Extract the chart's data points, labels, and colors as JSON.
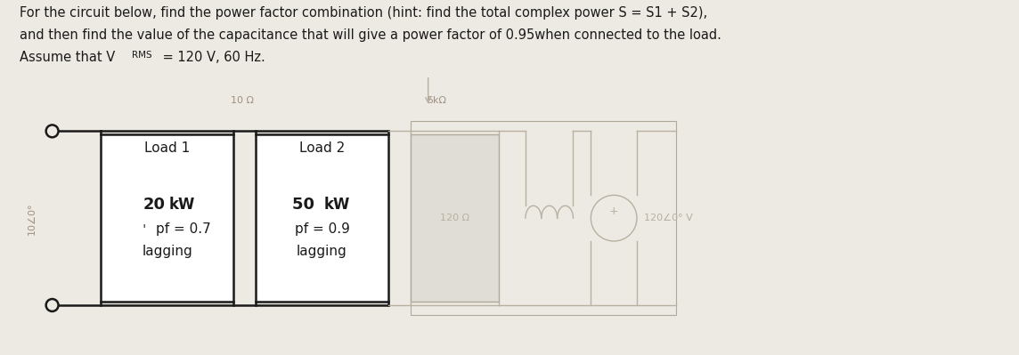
{
  "title_line1": "For the circuit below, find the power factor combination (hint: find the total complex power S = S1 + S2),",
  "title_line2": "and then find the value of the capacitance that will give a power factor of 0.95when connected to the load.",
  "title_line3_a": "Assume that V",
  "title_line3_rms": "RMS",
  "title_line3_b": " = 120 V, 60 Hz.",
  "load1_title": "Load 1",
  "load1_kw": "20",
  "load1_kw_unit": "kW",
  "load1_pf": "pf = 0.7",
  "load1_lag": "lagging",
  "load2_title": "Load 2",
  "load2_kw": "50 ",
  "load2_kw_unit": "kW",
  "load2_pf": "pf = 0.9",
  "load2_lag": "lagging",
  "bg_color": "#edeae4",
  "box_facecolor": "#ffffff",
  "box_edgecolor": "#1a1a1a",
  "wire_color": "#1a1a1a",
  "text_color": "#1a1a1a",
  "faded_color": "#b8b0a0",
  "faded_box_edge": "#b0a898",
  "faded_bg": "#e0ddd6",
  "faded_label_color": "#a09080",
  "left_label_color": "#a09080",
  "top_label_left": "10 Ω",
  "top_label_right": "5kΩ",
  "faded_res_label": "120 Ω",
  "faded_vs_label": "120∠0° V",
  "left_side_label": "10∠0°"
}
